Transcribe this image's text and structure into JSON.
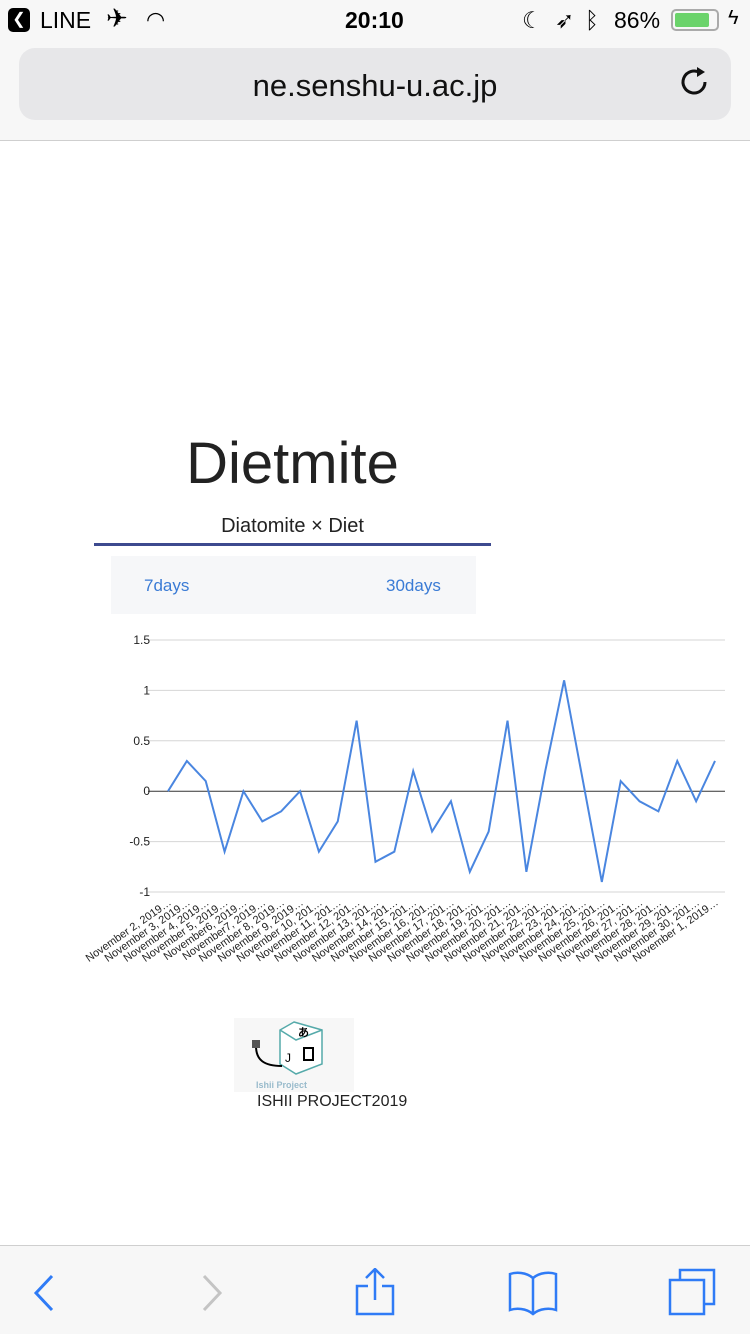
{
  "status_bar": {
    "back_app": "LINE",
    "time": "20:10",
    "battery": "86%",
    "battery_level": 0.86,
    "battery_color": "#6bd36b"
  },
  "browser": {
    "url": "ne.senshu-u.ac.jp"
  },
  "page": {
    "title": "Dietmite",
    "subtitle": "Diatomite × Diet",
    "tabs": [
      "7days",
      "30days"
    ],
    "footer": "ISHII PROJECT2019",
    "logo_text": "Ishii Project"
  },
  "chart_data": {
    "type": "line",
    "line_color": "#4a86e0",
    "grid": true,
    "ylim": [
      -1,
      1.5
    ],
    "yticks": [
      "1.5",
      "1",
      "0.5",
      "0",
      "-0.5",
      "-1"
    ],
    "categories": [
      "November 2, 2019…",
      "November 3, 2019…",
      "November 4, 2019…",
      "November 5, 2019…",
      "November6, 2019…",
      "November7, 2019…",
      "November 8, 2019…",
      "November 9, 2019…",
      "November 10, 201…",
      "November 11, 201…",
      "November 12, 201…",
      "November 13, 201…",
      "November 14, 201…",
      "November 15, 201…",
      "November 16, 201…",
      "November 17, 201…",
      "November 18, 201…",
      "November 19, 201…",
      "November 20, 201…",
      "November 21, 201…",
      "November 22, 201…",
      "November 23, 201…",
      "November 24, 201…",
      "November 25, 201…",
      "November 26, 201…",
      "November 27, 201…",
      "November 28, 201…",
      "November 29, 201…",
      "November 30, 201…",
      "November 1, 2019…"
    ],
    "values": [
      0,
      0.3,
      0.1,
      -0.6,
      0,
      -0.3,
      -0.2,
      0,
      -0.6,
      -0.3,
      0.7,
      -0.7,
      -0.6,
      0.2,
      -0.4,
      -0.1,
      -0.8,
      -0.4,
      0.7,
      -0.8,
      0.2,
      1.1,
      0.1,
      -0.9,
      0.1,
      -0.1,
      -0.2,
      0.3,
      -0.1,
      0.3
    ]
  }
}
